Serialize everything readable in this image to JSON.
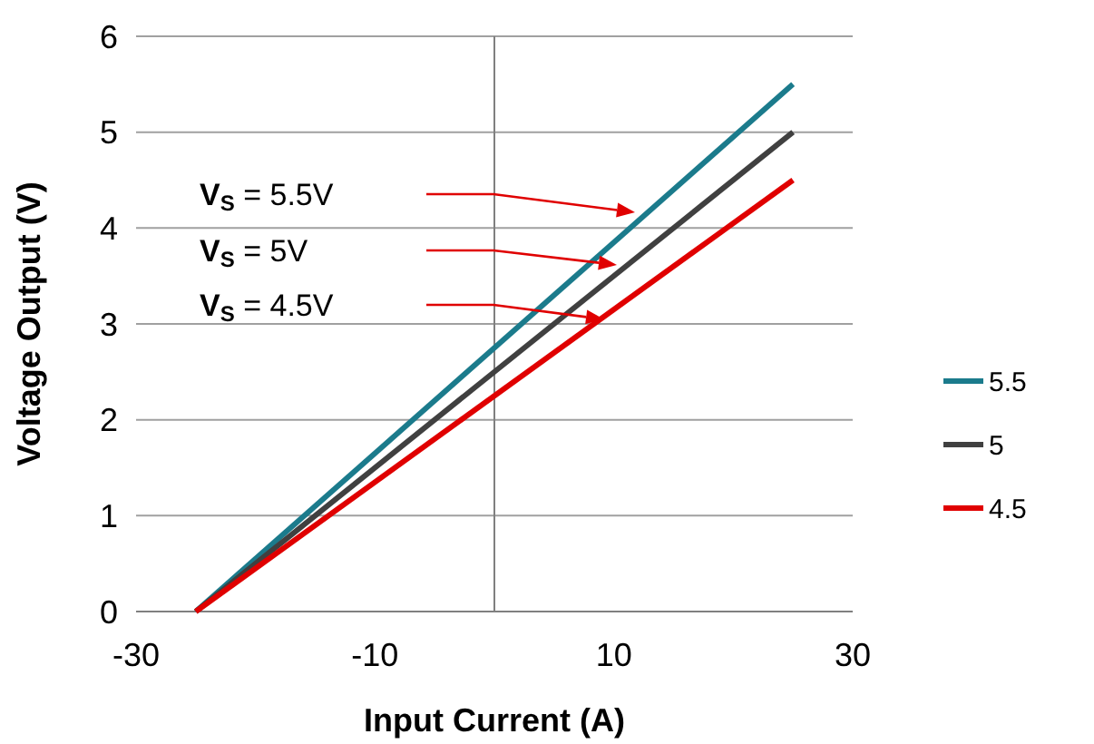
{
  "chart_data": {
    "type": "line",
    "xlabel": "Input Current (A)",
    "ylabel": "Voltage Output (V)",
    "xlim": [
      -30,
      30
    ],
    "xticks": [
      -30,
      -10,
      10,
      30
    ],
    "ylim": [
      0,
      6
    ],
    "yticks": [
      0,
      1,
      2,
      3,
      4,
      5,
      6
    ],
    "grid": "y",
    "legend": "right",
    "marker": "none",
    "line_style": "solid",
    "ref_lines": [
      {
        "axis": "x",
        "value": 0,
        "color": "#808080"
      }
    ],
    "series": [
      {
        "name": "5.5",
        "color": "#1b7b8c",
        "values": [
          0,
          5.5
        ]
      },
      {
        "name": "5",
        "color": "#404040",
        "values": [
          0,
          5
        ]
      },
      {
        "name": "4.5",
        "color": "#e00000",
        "values": [
          0,
          4.5
        ]
      }
    ],
    "x": [
      -25,
      25
    ],
    "annotations": [
      "V$_{S}$ = 5.5V",
      "V$_{S}$ = 5V",
      "V$_{S}$ = 4.5V"
    ]
  }
}
